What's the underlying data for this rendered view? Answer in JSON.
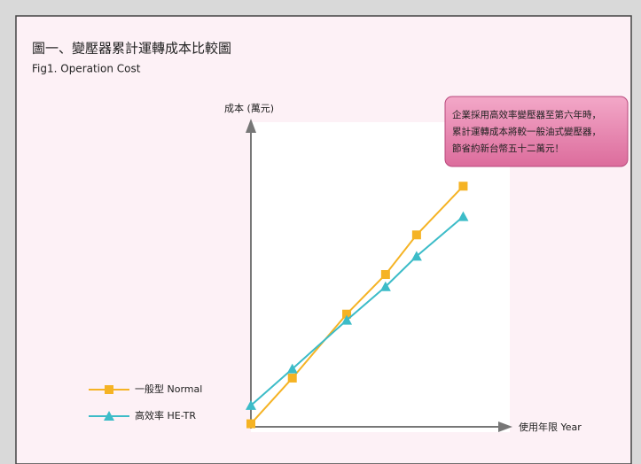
{
  "chart_data": {
    "type": "line",
    "title": "圖一、變壓器累計運轉成本比較圖",
    "subtitle": "Fig1. Operation Cost",
    "y_label": "成本 (萬元)",
    "x_label": "使用年限 Year",
    "annotation": [
      "企業採用高效率變壓器至第六年時，",
      "累計運轉成本將較一般油式變壓器，",
      "節省約新台幣五十二萬元！"
    ],
    "x": [
      0,
      16,
      37,
      52,
      64,
      82
    ],
    "xlim": [
      0,
      100
    ],
    "ylim": [
      0,
      100
    ],
    "legend": "lower left",
    "series": [
      {
        "name": "一般型 Normal",
        "color": "#f5b324",
        "marker": "square",
        "values": [
          1,
          16,
          37,
          50,
          63,
          79
        ]
      },
      {
        "name": "高效率 HE-TR",
        "color": "#3cbcc8",
        "marker": "triangle",
        "values": [
          7,
          19,
          35,
          46,
          56,
          69
        ]
      }
    ]
  }
}
